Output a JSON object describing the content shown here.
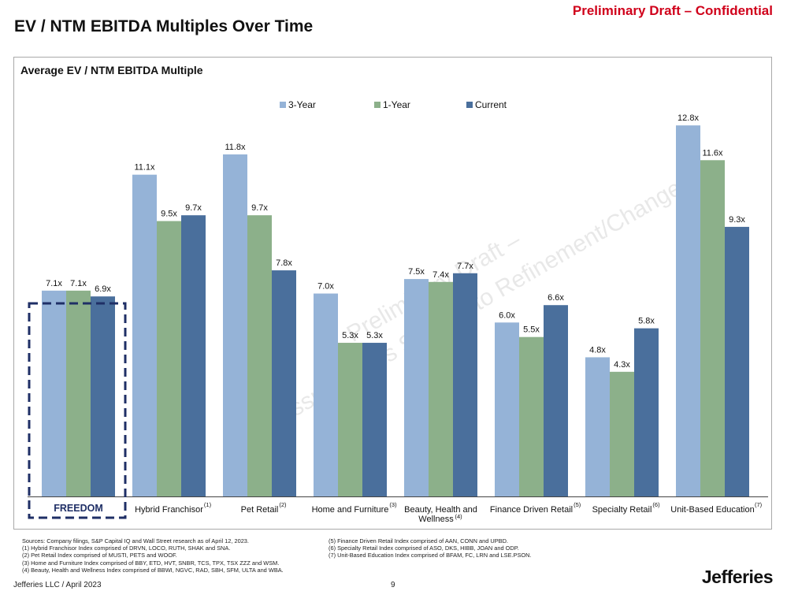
{
  "header": {
    "draft_label": "Preliminary Draft – Confidential",
    "page_title": "EV / NTM EBITDA Multiples Over Time"
  },
  "watermark": {
    "line1": "Preliminary Draft –",
    "line2": "Assumptions Subject to Refinement/Change"
  },
  "chart_data": {
    "type": "bar",
    "title": "Average EV / NTM EBITDA Multiple",
    "xlabel": "",
    "ylabel": "",
    "ylim": [
      0,
      14
    ],
    "grid": false,
    "legend_position": "top-center",
    "value_suffix": "x",
    "categories": [
      "FREEDOM",
      "Hybrid Franchisor",
      "Pet Retail",
      "Home and Furniture",
      "Beauty, Health and Wellness",
      "Finance Driven Retail",
      "Specialty Retail",
      "Unit-Based Education"
    ],
    "category_footnotes": [
      "",
      "(1)",
      "(2)",
      "(3)",
      "(4)",
      "(5)",
      "(6)",
      "(7)"
    ],
    "highlighted_category": "FREEDOM",
    "series": [
      {
        "name": "3-Year",
        "color": "#95b3d7",
        "values": [
          7.1,
          11.1,
          11.8,
          7.0,
          7.5,
          6.0,
          4.8,
          12.8
        ]
      },
      {
        "name": "1-Year",
        "color": "#8cb08a",
        "values": [
          7.1,
          9.5,
          9.7,
          5.3,
          7.4,
          5.5,
          4.3,
          11.6
        ]
      },
      {
        "name": "Current",
        "color": "#4a6f9c",
        "values": [
          6.9,
          9.7,
          7.8,
          5.3,
          7.7,
          6.6,
          5.8,
          9.3
        ]
      }
    ]
  },
  "sources": {
    "left": [
      "Sources: Company filings, S&P Capital IQ and Wall Street research as of April 12, 2023.",
      "(1)   Hybrid Franchisor Index comprised of DRVN, LOCO, RUTH, SHAK and SNA.",
      "(2)   Pet Retail Index comprised of MUSTI, PETS and WOOF.",
      "(3)   Home and Furniture Index comprised of BBY, ETD, HVT, SNBR, TCS, TPX, TSX ZZZ and WSM.",
      "(4)   Beauty, Health and Wellness Index comprised of BBWI, NGVC, RAD, SBH, SFM, ULTA and WBA."
    ],
    "right": [
      "(5)   Finance Driven Retail Index comprised of AAN, CONN and UPBD.",
      "(6)   Specialty Retail Index comprised of ASO, DKS, HIBB, JOAN and ODP.",
      "(7)   Unit-Based Education Index comprised of BFAM, FC, LRN and LSE.PSON."
    ]
  },
  "footer": {
    "company_date": "Jefferies LLC  /  April 2023",
    "page_number": "9",
    "logo_text": "Jefferies"
  }
}
